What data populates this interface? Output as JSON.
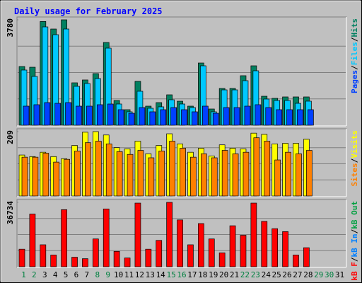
{
  "chart_data": {
    "type": "bar",
    "title": "Daily usage for February 2025",
    "title_color": "#0000ff",
    "categories": [
      "1",
      "2",
      "3",
      "4",
      "5",
      "6",
      "7",
      "8",
      "9",
      "10",
      "11",
      "12",
      "13",
      "14",
      "15",
      "16",
      "17",
      "18",
      "19",
      "20",
      "21",
      "22",
      "23",
      "24",
      "25",
      "26",
      "27",
      "28",
      "29",
      "30",
      "31"
    ],
    "weekend": [
      0,
      1,
      7,
      8,
      14,
      15,
      21,
      22,
      28,
      29
    ],
    "weekend_color": "#008040",
    "legend_separator": "/",
    "panels": [
      {
        "ylim": [
          0,
          3780
        ],
        "yticks": [
          3780
        ],
        "series": [
          {
            "name": "Hits",
            "color": "#008060",
            "values": [
              2106,
              2080,
              3720,
              3450,
              3780,
              1522,
              1624,
              1852,
              2968,
              888,
              558,
              1573,
              685,
              812,
              1091,
              862,
              685,
              2232,
              583,
              1319,
              1319,
              1776,
              2131,
              1040,
              964,
              1015,
              1015,
              1015,
              null,
              null,
              null
            ]
          },
          {
            "name": "Files",
            "color": "#00c8ff",
            "values": [
              1979,
              1750,
              3526,
              3247,
              3450,
              1395,
              1497,
              1674,
              2765,
              761,
              482,
              1218,
              609,
              660,
              913,
              761,
              634,
              2131,
              482,
              1268,
              1268,
              1598,
              1953,
              939,
              888,
              888,
              786,
              863,
              null,
              null,
              null
            ]
          },
          {
            "name": "Pages",
            "color": "#0040ff",
            "values": [
              685,
              736,
              812,
              786,
              812,
              685,
              685,
              736,
              761,
              558,
              431,
              634,
              482,
              558,
              634,
              558,
              482,
              685,
              431,
              634,
              634,
              685,
              736,
              634,
              558,
              558,
              558,
              558,
              null,
              null,
              null
            ]
          }
        ]
      },
      {
        "ylim": [
          0,
          209
        ],
        "yticks": [
          209
        ],
        "series": [
          {
            "name": "Visits",
            "color": "#ffff00",
            "values": [
              133,
              128,
              142,
              128,
              121,
              164,
              207,
              209,
              198,
              157,
              153,
              178,
              137,
              164,
              202,
              169,
              142,
              155,
              130,
              166,
              155,
              153,
              204,
              200,
              169,
              171,
              171,
              184,
              null,
              null,
              null
            ]
          },
          {
            "name": "Sites",
            "color": "#ff8000",
            "values": [
              126,
              126,
              139,
              110,
              119,
              146,
              173,
              178,
              169,
              144,
              135,
              148,
              124,
              146,
              178,
              155,
              126,
              137,
              124,
              148,
              137,
              142,
              189,
              178,
              117,
              142,
              137,
              148,
              null,
              null,
              null
            ]
          }
        ]
      },
      {
        "ylim": [
          0,
          36734
        ],
        "yticks": [
          36734
        ],
        "series": [
          {
            "name": "kB Out",
            "color": "#00a040"
          },
          {
            "name": "kB In",
            "color": "#0080ff"
          },
          {
            "name": "kB F",
            "color": "#ff0000",
            "values": [
              10018,
              30053,
              12522,
              6679,
              32558,
              5426,
              4591,
              15862,
              32975,
              8766,
              5009,
              36316,
              10018,
              15027,
              36734,
              26715,
              12522,
              24628,
              15862,
              7931,
              23375,
              17949,
              36316,
              25880,
              21706,
              20036,
              6679,
              10853,
              null,
              null,
              null
            ]
          }
        ]
      }
    ]
  }
}
